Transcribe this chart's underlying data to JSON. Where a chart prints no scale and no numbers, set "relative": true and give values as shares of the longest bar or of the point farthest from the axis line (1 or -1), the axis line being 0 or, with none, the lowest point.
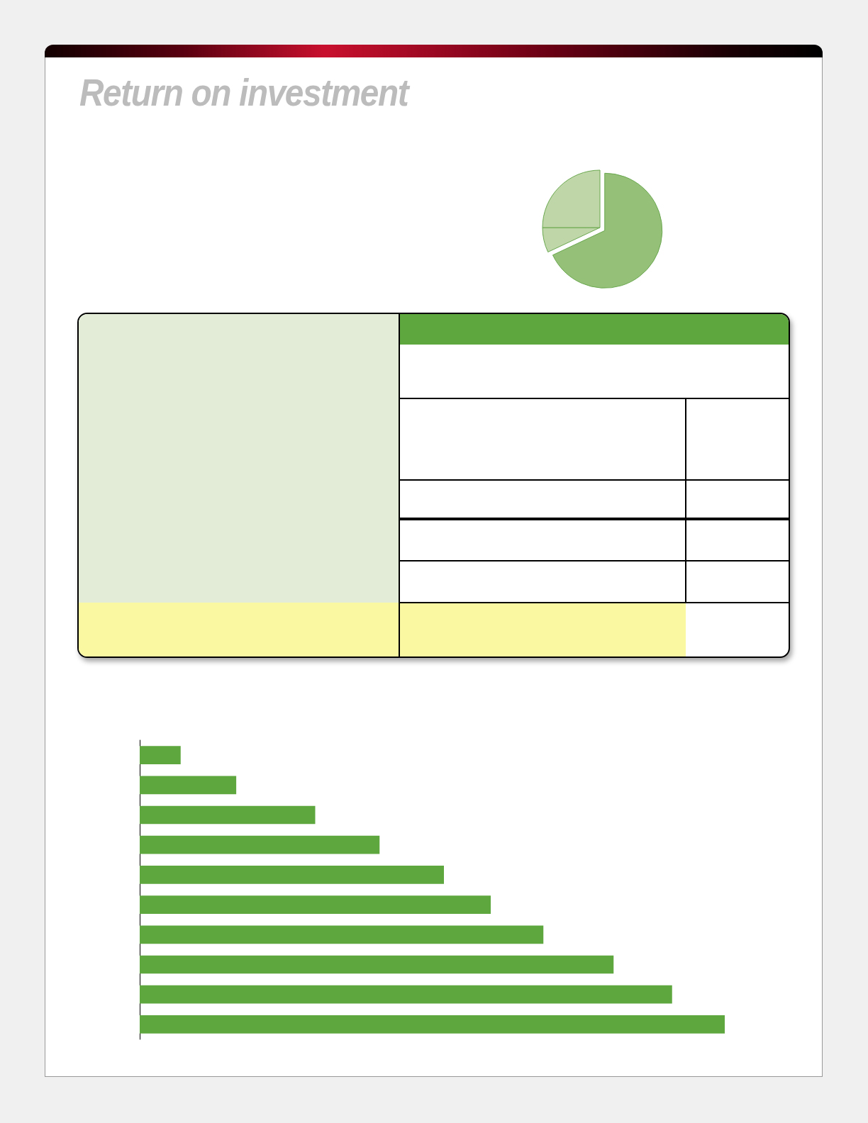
{
  "chart_data": [
    {
      "type": "pie",
      "title": "Return on investment",
      "categories": [
        null,
        null,
        null
      ],
      "values": [
        68,
        7,
        25
      ],
      "colors": [
        "#95c078",
        "#bfd6a8",
        "#bfd6a8"
      ]
    },
    {
      "type": "bar",
      "orientation": "horizontal",
      "relative": true,
      "categories": [
        null,
        null,
        null,
        null,
        null,
        null,
        null,
        null,
        null,
        null
      ],
      "values": [
        0.07,
        0.165,
        0.3,
        0.41,
        0.52,
        0.6,
        0.69,
        0.81,
        0.91,
        1.0
      ],
      "color": "#5ea73f"
    }
  ]
}
